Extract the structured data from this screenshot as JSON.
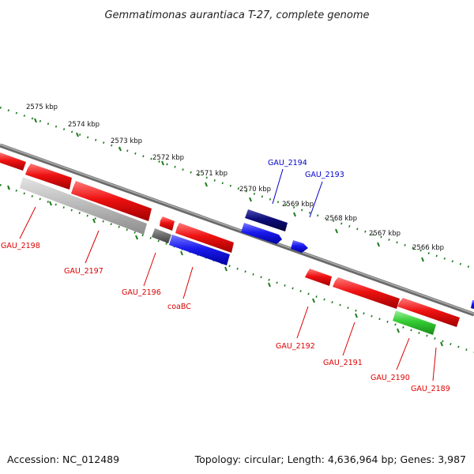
{
  "title": "Gemmatimonas aurantiaca T-27, complete genome",
  "footer": {
    "accession": "Accession: NC_012489",
    "summary": "Topology: circular; Length: 4,636,964 bp; Genes: 3,987"
  },
  "colors": {
    "backbone": "#8a8a8a",
    "tick": "#1e7a1e",
    "gene_red": "#ee1111",
    "gene_blue": "#1a1aee",
    "gene_navy": "#0c0c78",
    "gene_gray": "#b9b9b9",
    "gene_darkgray": "#6e6e6e",
    "gene_green": "#33cc33",
    "label_red": "#dd0000",
    "label_blue": "#0000cc"
  },
  "scale_labels": [
    "2575 kbp",
    "2574 kbp",
    "2573 kbp",
    "2572 kbp",
    "2571 kbp",
    "2570 kbp",
    "2569 kbp",
    "2568 kbp",
    "2567 kbp",
    "2566 kbp"
  ],
  "gene_labels": [
    {
      "text": "GAU_2194",
      "color": "blue"
    },
    {
      "text": "GAU_2193",
      "color": "blue"
    },
    {
      "text": "GAU_2198",
      "color": "red"
    },
    {
      "text": "GAU_2197",
      "color": "red"
    },
    {
      "text": "GAU_2196",
      "color": "red"
    },
    {
      "text": "coaBC",
      "color": "red"
    },
    {
      "text": "GAU_2192",
      "color": "red"
    },
    {
      "text": "GAU_2191",
      "color": "red"
    },
    {
      "text": "GAU_2190",
      "color": "red"
    },
    {
      "text": "GAU_2189",
      "color": "red"
    }
  ]
}
